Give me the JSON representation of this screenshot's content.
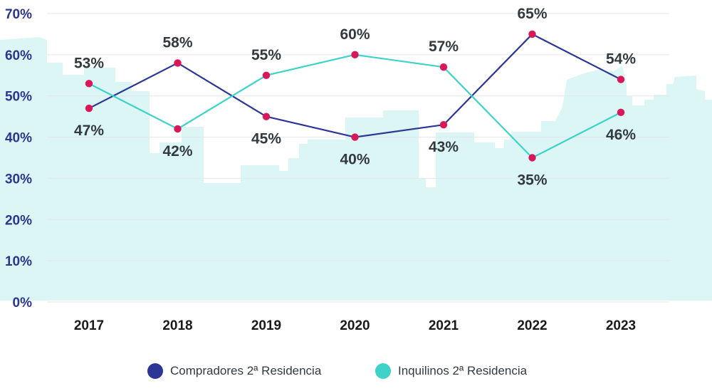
{
  "chart_data": {
    "type": "line",
    "title": "",
    "xlabel": "",
    "ylabel": "",
    "categories": [
      "2017",
      "2018",
      "2019",
      "2020",
      "2021",
      "2022",
      "2023"
    ],
    "ylim": [
      0,
      70
    ],
    "yticks": [
      "0%",
      "10%",
      "20%",
      "30%",
      "40%",
      "50%",
      "60%",
      "70%"
    ],
    "grid": true,
    "legend_position": "bottom-center",
    "series": [
      {
        "name": "Compradores 2ª Residencia",
        "color": "#2b3696",
        "values": [
          47,
          58,
          45,
          40,
          43,
          65,
          54
        ],
        "labels": [
          "47%",
          "58%",
          "45%",
          "40%",
          "43%",
          "65%",
          "54%"
        ]
      },
      {
        "name": "Inquilinos 2ª Residencia",
        "color": "#3dd3c9",
        "values": [
          53,
          42,
          55,
          60,
          57,
          35,
          46
        ],
        "labels": [
          "53%",
          "42%",
          "55%",
          "60%",
          "57%",
          "35%",
          "46%"
        ]
      }
    ],
    "marker_color": "#d8185a",
    "background_color": "#dcf6f6"
  }
}
